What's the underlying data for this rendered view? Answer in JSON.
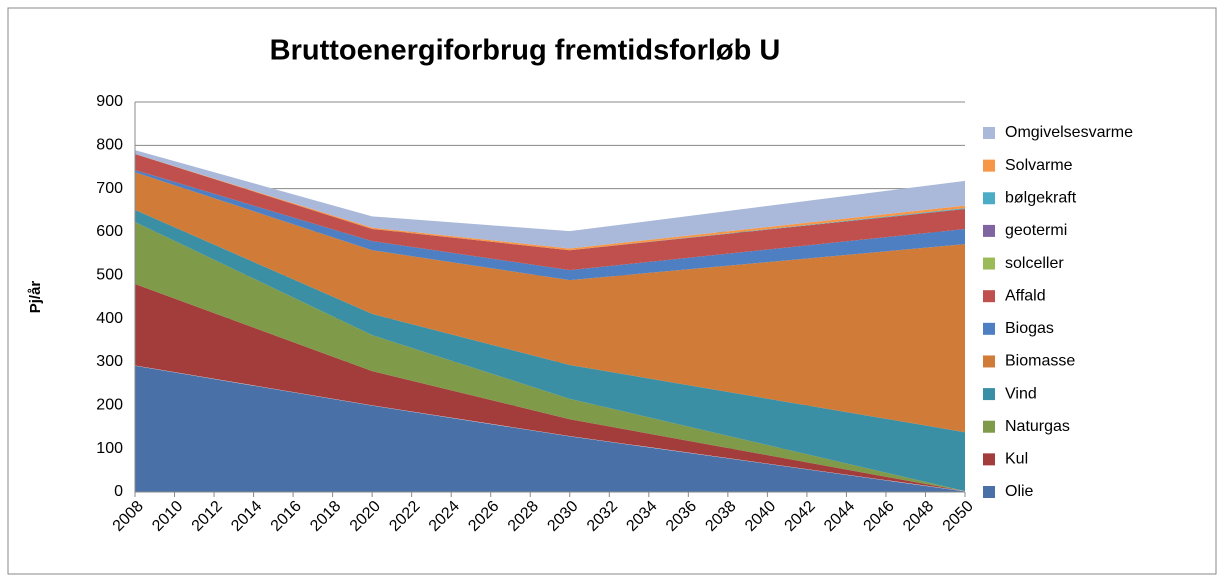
{
  "chart_data": {
    "type": "stacked_area",
    "title": "Bruttoenergiforbrug fremtidsforløb U",
    "y_label": "Pj/år",
    "x": [
      2008,
      2020,
      2030,
      2050
    ],
    "xlim": [
      2008,
      2050
    ],
    "xticks": [
      2008,
      2010,
      2012,
      2014,
      2016,
      2018,
      2020,
      2022,
      2024,
      2026,
      2028,
      2030,
      2032,
      2034,
      2036,
      2038,
      2040,
      2042,
      2044,
      2046,
      2048,
      2050
    ],
    "ylim": [
      0,
      900
    ],
    "yticks": [
      0,
      100,
      200,
      300,
      400,
      500,
      600,
      700,
      800,
      900
    ],
    "grid": true,
    "legend": "right",
    "series": [
      {
        "name": "Olie",
        "color": "#4a70a8",
        "values": [
          292,
          200,
          129,
          2
        ]
      },
      {
        "name": "Kul",
        "color": "#a33d3b",
        "values": [
          188,
          79,
          39,
          0
        ]
      },
      {
        "name": "Naturgas",
        "color": "#7f9a48",
        "values": [
          143,
          83,
          47,
          0
        ]
      },
      {
        "name": "Vind",
        "color": "#3a8fa5",
        "values": [
          28,
          49,
          78,
          136
        ]
      },
      {
        "name": "Biomasse",
        "color": "#d07b38",
        "values": [
          87,
          147,
          196,
          434
        ]
      },
      {
        "name": "Biogas",
        "color": "#4d7fc2",
        "values": [
          5,
          21,
          23,
          35
        ]
      },
      {
        "name": "Affald",
        "color": "#c0504d",
        "values": [
          37,
          28,
          46,
          46
        ]
      },
      {
        "name": "solceller",
        "color": "#9bbb59",
        "values": [
          0,
          0,
          0,
          0
        ]
      },
      {
        "name": "geotermi",
        "color": "#8064a2",
        "values": [
          0,
          0,
          0,
          0
        ]
      },
      {
        "name": "bølgekraft",
        "color": "#4bacc6",
        "values": [
          0,
          0,
          0,
          2
        ]
      },
      {
        "name": "Solvarme",
        "color": "#f79646",
        "values": [
          0,
          3,
          4,
          6
        ]
      },
      {
        "name": "Omgivelsesvarme",
        "color": "#aab9d9",
        "values": [
          9,
          26,
          40,
          57
        ]
      }
    ]
  }
}
